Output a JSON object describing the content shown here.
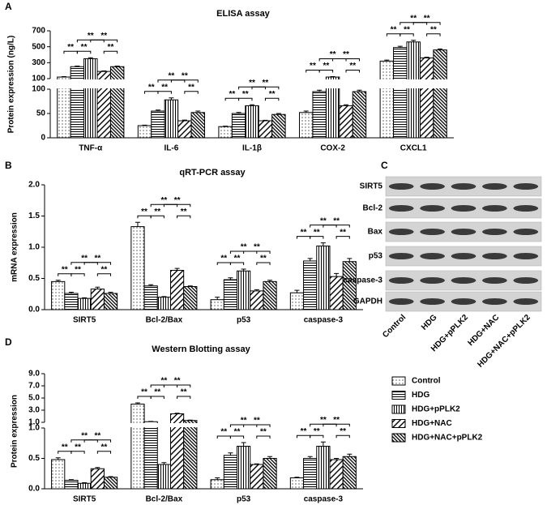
{
  "chart_data": [
    {
      "panel": "A",
      "type": "bar",
      "title": "ELISA assay",
      "y_label": "Protein expression (ng/L)",
      "categories": [
        "TNF-α",
        "IL-6",
        "IL-1β",
        "COX-2",
        "CXCL1"
      ],
      "y_segments": [
        {
          "ylim": [
            0,
            100
          ],
          "yticks": [
            0,
            50,
            100
          ]
        },
        {
          "ylim": [
            100,
            700
          ],
          "yticks": [
            100,
            300,
            500,
            700
          ]
        }
      ],
      "series": [
        {
          "pattern": "dots",
          "values": [
            120,
            25,
            23,
            52,
            320
          ],
          "errors": [
            5,
            1,
            1,
            3,
            12
          ]
        },
        {
          "pattern": "hlines",
          "values": [
            250,
            55,
            50,
            95,
            490
          ],
          "errors": [
            8,
            2,
            2,
            3,
            15
          ]
        },
        {
          "pattern": "vlines",
          "values": [
            350,
            78,
            66,
            120,
            560
          ],
          "errors": [
            12,
            4,
            2,
            5,
            20
          ]
        },
        {
          "pattern": "diag",
          "values": [
            190,
            35,
            35,
            66,
            360
          ],
          "errors": [
            6,
            1.5,
            1,
            2,
            10
          ]
        },
        {
          "pattern": "diag2",
          "values": [
            250,
            52,
            48,
            95,
            460
          ],
          "errors": [
            8,
            3,
            2,
            3,
            12
          ]
        }
      ],
      "comparisons": [
        {
          "pair": [
            0,
            1
          ],
          "label": "**"
        },
        {
          "pair": [
            1,
            2
          ],
          "label": "**"
        },
        {
          "pair": [
            3,
            4
          ],
          "label": "**"
        },
        {
          "pair": [
            1,
            3
          ],
          "label": "**"
        },
        {
          "pair": [
            2,
            4
          ],
          "label": "**"
        }
      ]
    },
    {
      "panel": "B",
      "type": "bar",
      "title": "qRT-PCR assay",
      "y_label": "mRNA expression",
      "categories": [
        "SIRT5",
        "Bcl-2/Bax",
        "p53",
        "caspase-3"
      ],
      "ylim": [
        0,
        2
      ],
      "yticks": [
        {
          "value": 0,
          "label": "0.0"
        },
        {
          "value": 0.5,
          "label": "0.5"
        },
        {
          "value": 1,
          "label": "1.0"
        },
        {
          "value": 1.5,
          "label": "1.5"
        },
        {
          "value": 2,
          "label": "2.0"
        }
      ],
      "series": [
        {
          "pattern": "dots",
          "values": [
            0.45,
            1.33,
            0.16,
            0.27
          ],
          "errors": [
            0.02,
            0.07,
            0.04,
            0.04
          ]
        },
        {
          "pattern": "hlines",
          "values": [
            0.26,
            0.38,
            0.48,
            0.78
          ],
          "errors": [
            0.02,
            0.02,
            0.03,
            0.04
          ]
        },
        {
          "pattern": "vlines",
          "values": [
            0.18,
            0.2,
            0.62,
            1.02
          ],
          "errors": [
            0.01,
            0.01,
            0.03,
            0.05
          ]
        },
        {
          "pattern": "diag",
          "values": [
            0.33,
            0.63,
            0.3,
            0.53
          ],
          "errors": [
            0.03,
            0.03,
            0.02,
            0.05
          ]
        },
        {
          "pattern": "diag2",
          "values": [
            0.26,
            0.37,
            0.45,
            0.77
          ],
          "errors": [
            0.02,
            0.01,
            0.02,
            0.05
          ]
        }
      ],
      "comparisons": [
        {
          "pair": [
            0,
            1
          ],
          "label": "**"
        },
        {
          "pair": [
            1,
            2
          ],
          "label": "**"
        },
        {
          "pair": [
            3,
            4
          ],
          "label": "**"
        },
        {
          "pair": [
            1,
            3
          ],
          "label": "**"
        },
        {
          "pair": [
            2,
            4
          ],
          "label": "**"
        }
      ]
    },
    {
      "panel": "D",
      "type": "bar",
      "title": "Western Blotting assay",
      "y_label": "Protein expression",
      "categories": [
        "SIRT5",
        "Bcl-2/Bax",
        "p53",
        "caspase-3"
      ],
      "y_segments": [
        {
          "ylim": [
            0,
            1
          ],
          "yticks": [
            {
              "value": 0,
              "label": "0.0"
            },
            {
              "value": 0.5,
              "label": "0.5"
            },
            {
              "value": 1,
              "label": "1.0"
            }
          ]
        },
        {
          "ylim": [
            1,
            9
          ],
          "yticks": [
            {
              "value": 1,
              "label": "1.0"
            },
            {
              "value": 3,
              "label": "3.0"
            },
            {
              "value": 5,
              "label": "5.0"
            },
            {
              "value": 7,
              "label": "7.0"
            },
            {
              "value": 9,
              "label": "9.0"
            }
          ]
        }
      ],
      "series": [
        {
          "name": "Control",
          "pattern": "dots",
          "values": [
            0.48,
            4.0,
            0.15,
            0.18
          ],
          "errors": [
            0.03,
            0.2,
            0.03,
            0.01
          ]
        },
        {
          "name": "HDG",
          "pattern": "hlines",
          "values": [
            0.14,
            1.1,
            0.55,
            0.5
          ],
          "errors": [
            0.01,
            0.05,
            0.04,
            0.03
          ]
        },
        {
          "name": "HDG+pPLK2",
          "pattern": "vlines",
          "values": [
            0.09,
            0.4,
            0.7,
            0.7
          ],
          "errors": [
            0.01,
            0.03,
            0.06,
            0.07
          ]
        },
        {
          "name": "HDG+NAC",
          "pattern": "diag",
          "values": [
            0.33,
            2.4,
            0.4,
            0.48
          ],
          "errors": [
            0.02,
            0.1,
            0.01,
            0.02
          ]
        },
        {
          "name": "HDG+NAC+pPLK2",
          "pattern": "diag2",
          "values": [
            0.19,
            1.3,
            0.5,
            0.53
          ],
          "errors": [
            0.01,
            0.06,
            0.03,
            0.04
          ]
        }
      ],
      "comparisons": [
        {
          "pair": [
            0,
            1
          ],
          "label": "**"
        },
        {
          "pair": [
            1,
            2
          ],
          "label": "**"
        },
        {
          "pair": [
            3,
            4
          ],
          "label": "**"
        },
        {
          "pair": [
            1,
            3
          ],
          "label": "**"
        },
        {
          "pair": [
            2,
            4
          ],
          "label": "**"
        }
      ]
    }
  ],
  "blot": {
    "panel": "C",
    "rows": [
      "SIRT5",
      "Bcl-2",
      "Bax",
      "p53",
      "caspase-3",
      "GAPDH"
    ],
    "lanes": [
      "Control",
      "HDG",
      "HDG+pPLK2",
      "HDG+NAC",
      "HDG+NAC+pPLK2"
    ]
  }
}
